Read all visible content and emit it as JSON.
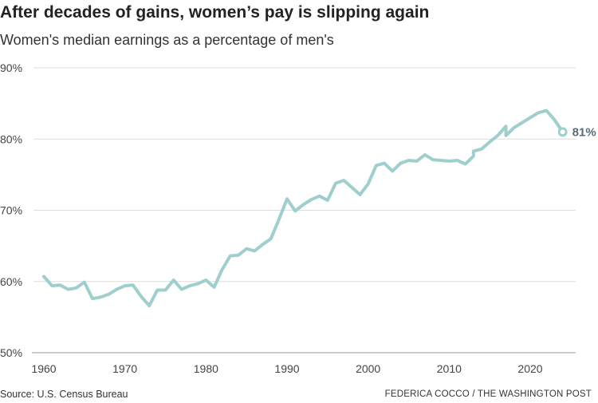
{
  "title": "After decades of gains, women’s pay is slipping again",
  "subtitle": "Women's median earnings as a percentage of men's",
  "source": "Source: U.S. Census Bureau",
  "credit": "FEDERICA COCCO / THE WASHINGTON POST",
  "chart_data": {
    "type": "line",
    "title": "After decades of gains, women’s pay is slipping again",
    "subtitle": "Women's median earnings as a percentage of men's",
    "xlim": [
      1960,
      2024
    ],
    "ylim": [
      50,
      90
    ],
    "x_ticks": [
      1960,
      1970,
      1980,
      1990,
      2000,
      2010,
      2020
    ],
    "x_tick_labels": [
      "1960",
      "1970",
      "1980",
      "1990",
      "2000",
      "2010",
      "2020"
    ],
    "y_ticks": [
      50,
      60,
      70,
      80,
      90
    ],
    "y_tick_labels": [
      "50%",
      "60%",
      "70%",
      "80%",
      "90%"
    ],
    "grid": "horizontal",
    "line_color": "#9fcfcd",
    "end_label": "81%",
    "end_label_color": "#5b6b7a",
    "series": [
      {
        "x": [
          1960,
          1961,
          1962,
          1963,
          1964,
          1965,
          1966,
          1967,
          1968,
          1969,
          1970,
          1971,
          1972,
          1973,
          1974,
          1975,
          1976,
          1977,
          1978,
          1979,
          1980,
          1981,
          1982,
          1983,
          1984,
          1985,
          1986,
          1987,
          1988,
          1989,
          1990,
          1991,
          1992,
          1993,
          1994,
          1995,
          1996,
          1997,
          1998,
          1999,
          2000,
          2001,
          2002,
          2003,
          2004,
          2005,
          2006,
          2007,
          2008,
          2009,
          2010,
          2011,
          2012,
          2013,
          2013,
          2014,
          2015,
          2016,
          2017,
          2017,
          2018,
          2019,
          2020,
          2021,
          2022,
          2023,
          2024
        ],
        "y": [
          60.7,
          59.4,
          59.5,
          58.9,
          59.1,
          59.9,
          57.6,
          57.8,
          58.2,
          58.9,
          59.4,
          59.5,
          57.9,
          56.6,
          58.8,
          58.8,
          60.2,
          58.9,
          59.4,
          59.7,
          60.2,
          59.2,
          61.7,
          63.6,
          63.7,
          64.6,
          64.3,
          65.2,
          66.0,
          68.7,
          71.6,
          69.9,
          70.8,
          71.5,
          72.0,
          71.4,
          73.8,
          74.2,
          73.2,
          72.2,
          73.7,
          76.3,
          76.6,
          75.5,
          76.6,
          77.0,
          76.9,
          77.8,
          77.1,
          77.0,
          76.9,
          77.0,
          76.5,
          77.6,
          78.3,
          78.6,
          79.6,
          80.5,
          81.8,
          80.5,
          81.6,
          82.3,
          83.0,
          83.7,
          84.0,
          82.7,
          81.0
        ]
      }
    ]
  }
}
